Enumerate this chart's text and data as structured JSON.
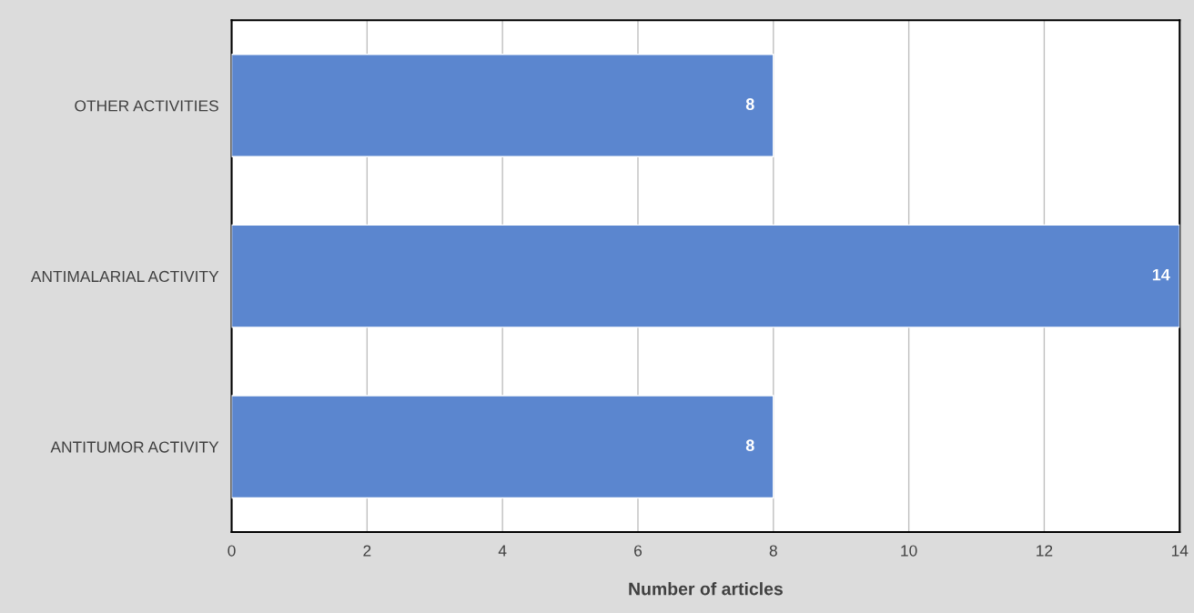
{
  "chart_data": {
    "type": "bar",
    "orientation": "horizontal",
    "xlabel": "Number of articles",
    "categories": [
      "OTHER ACTIVITIES",
      "ANTIMALARIAL ACTIVITY",
      "ANTITUMOR ACTIVITY"
    ],
    "values": [
      8,
      14,
      8
    ],
    "color": "#5b86cf",
    "xlim": [
      0,
      14
    ],
    "xticks": [
      0,
      2,
      4,
      6,
      8,
      10,
      12,
      14
    ],
    "grid": "x",
    "data_labels": true,
    "legend": false
  }
}
